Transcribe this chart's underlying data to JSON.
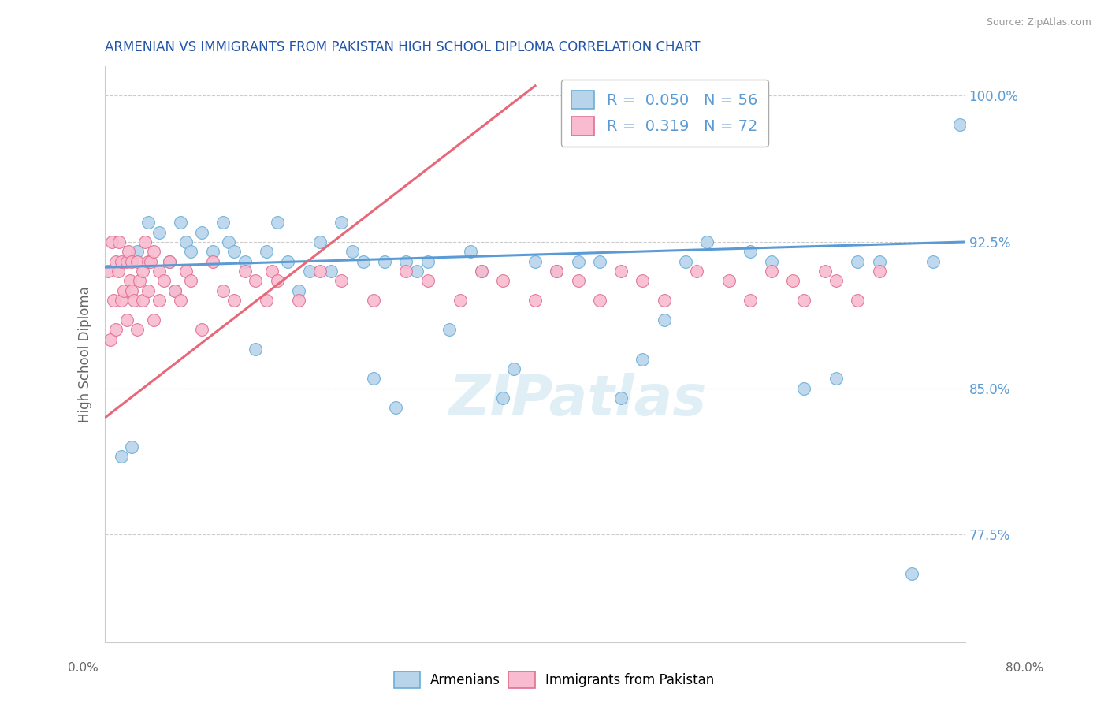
{
  "title": "ARMENIAN VS IMMIGRANTS FROM PAKISTAN HIGH SCHOOL DIPLOMA CORRELATION CHART",
  "source": "Source: ZipAtlas.com",
  "ylabel": "High School Diploma",
  "xmin": 0.0,
  "xmax": 80.0,
  "ymin": 72.0,
  "ymax": 101.5,
  "yticks": [
    77.5,
    85.0,
    92.5,
    100.0
  ],
  "ytick_labels": [
    "77.5%",
    "85.0%",
    "92.5%",
    "100.0%"
  ],
  "legend_r_armenian": "0.050",
  "legend_n_armenian": "56",
  "legend_r_pakistan": "0.319",
  "legend_n_pakistan": "72",
  "color_armenian_fill": "#b8d4eb",
  "color_armenian_edge": "#6aaed6",
  "color_pakistan_fill": "#f8bbd0",
  "color_pakistan_edge": "#e07090",
  "color_line_armenian": "#5b9bd5",
  "color_line_pakistan": "#e8687a",
  "watermark_color": "#cce4f0",
  "title_color": "#2255aa",
  "source_color": "#999999",
  "arm_line_x0": 0.0,
  "arm_line_x1": 80.0,
  "arm_line_y0": 91.2,
  "arm_line_y1": 92.5,
  "pak_line_x0": 0.0,
  "pak_line_x1": 40.0,
  "pak_line_y0": 83.5,
  "pak_line_y1": 100.5,
  "armenian_x": [
    1.5,
    2.5,
    3.0,
    4.0,
    5.0,
    6.0,
    6.5,
    7.0,
    7.5,
    8.0,
    9.0,
    10.0,
    11.0,
    11.5,
    12.0,
    13.0,
    14.0,
    15.0,
    16.0,
    17.0,
    18.0,
    19.0,
    20.0,
    21.0,
    22.0,
    23.0,
    24.0,
    25.0,
    26.0,
    27.0,
    28.0,
    29.0,
    30.0,
    32.0,
    34.0,
    35.0,
    37.0,
    38.0,
    40.0,
    42.0,
    44.0,
    46.0,
    48.0,
    50.0,
    52.0,
    54.0,
    56.0,
    60.0,
    62.0,
    65.0,
    68.0,
    70.0,
    72.0,
    75.0,
    77.0,
    79.5
  ],
  "armenian_y": [
    81.5,
    82.0,
    92.0,
    93.5,
    93.0,
    91.5,
    90.0,
    93.5,
    92.5,
    92.0,
    93.0,
    92.0,
    93.5,
    92.5,
    92.0,
    91.5,
    87.0,
    92.0,
    93.5,
    91.5,
    90.0,
    91.0,
    92.5,
    91.0,
    93.5,
    92.0,
    91.5,
    85.5,
    91.5,
    84.0,
    91.5,
    91.0,
    91.5,
    88.0,
    92.0,
    91.0,
    84.5,
    86.0,
    91.5,
    91.0,
    91.5,
    91.5,
    84.5,
    86.5,
    88.5,
    91.5,
    92.5,
    92.0,
    91.5,
    85.0,
    85.5,
    91.5,
    91.5,
    75.5,
    91.5,
    98.5
  ],
  "pakistan_x": [
    0.3,
    0.5,
    0.6,
    0.8,
    1.0,
    1.0,
    1.2,
    1.3,
    1.5,
    1.5,
    1.7,
    2.0,
    2.0,
    2.2,
    2.3,
    2.5,
    2.5,
    2.7,
    3.0,
    3.0,
    3.2,
    3.5,
    3.5,
    3.7,
    4.0,
    4.0,
    4.2,
    4.5,
    4.5,
    5.0,
    5.0,
    5.5,
    6.0,
    6.5,
    7.0,
    7.5,
    8.0,
    9.0,
    10.0,
    11.0,
    12.0,
    13.0,
    14.0,
    15.0,
    15.5,
    16.0,
    18.0,
    20.0,
    22.0,
    25.0,
    28.0,
    30.0,
    33.0,
    35.0,
    37.0,
    40.0,
    42.0,
    44.0,
    46.0,
    48.0,
    50.0,
    52.0,
    55.0,
    58.0,
    60.0,
    62.0,
    64.0,
    65.0,
    67.0,
    68.0,
    70.0,
    72.0
  ],
  "pakistan_y": [
    91.0,
    87.5,
    92.5,
    89.5,
    88.0,
    91.5,
    91.0,
    92.5,
    89.5,
    91.5,
    90.0,
    91.5,
    88.5,
    92.0,
    90.5,
    91.5,
    90.0,
    89.5,
    91.5,
    88.0,
    90.5,
    91.0,
    89.5,
    92.5,
    91.5,
    90.0,
    91.5,
    88.5,
    92.0,
    91.0,
    89.5,
    90.5,
    91.5,
    90.0,
    89.5,
    91.0,
    90.5,
    88.0,
    91.5,
    90.0,
    89.5,
    91.0,
    90.5,
    89.5,
    91.0,
    90.5,
    89.5,
    91.0,
    90.5,
    89.5,
    91.0,
    90.5,
    89.5,
    91.0,
    90.5,
    89.5,
    91.0,
    90.5,
    89.5,
    91.0,
    90.5,
    89.5,
    91.0,
    90.5,
    89.5,
    91.0,
    90.5,
    89.5,
    91.0,
    90.5,
    89.5,
    91.0
  ]
}
